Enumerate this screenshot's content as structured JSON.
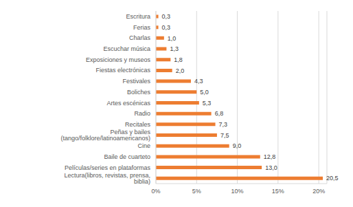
{
  "chart_data": {
    "type": "bar",
    "orientation": "horizontal",
    "categories": [
      "Escritura",
      "Ferias",
      "Charlas",
      "Escuchar música",
      "Exposiciones y museos",
      "Fiestas electrónicas",
      "Festivales",
      "Boliches",
      "Artes escénicas",
      "Radio",
      "Recitales",
      "Peñas y bailes (tango/folklore/latinoamericanos)",
      "Cine",
      "Baile de cuarteto",
      "Películas/series en plataformas",
      "Lectura(libros, revistas, prensa, biblia)"
    ],
    "values": [
      0.3,
      0.3,
      1.0,
      1.3,
      1.8,
      2.0,
      4.3,
      5.0,
      5.3,
      6.8,
      7.3,
      7.5,
      9.0,
      12.8,
      13.0,
      20.5
    ],
    "value_labels": [
      "0,3",
      "0,3",
      "1,0",
      "1,3",
      "1,8",
      "2,0",
      "4,3",
      "5,0",
      "5,3",
      "6,8",
      "7,3",
      "7,5",
      "9,0",
      "12,8",
      "13,0",
      "20,5"
    ],
    "color": "#ed7d31",
    "xlim": [
      0,
      21
    ],
    "xticks": [
      {
        "value": 0,
        "label": "0%"
      },
      {
        "value": 5,
        "label": "5%"
      },
      {
        "value": 10,
        "label": "10%"
      },
      {
        "value": 15,
        "label": "15%"
      },
      {
        "value": 20,
        "label": "20%"
      }
    ],
    "grid": true,
    "data_labels": true
  }
}
